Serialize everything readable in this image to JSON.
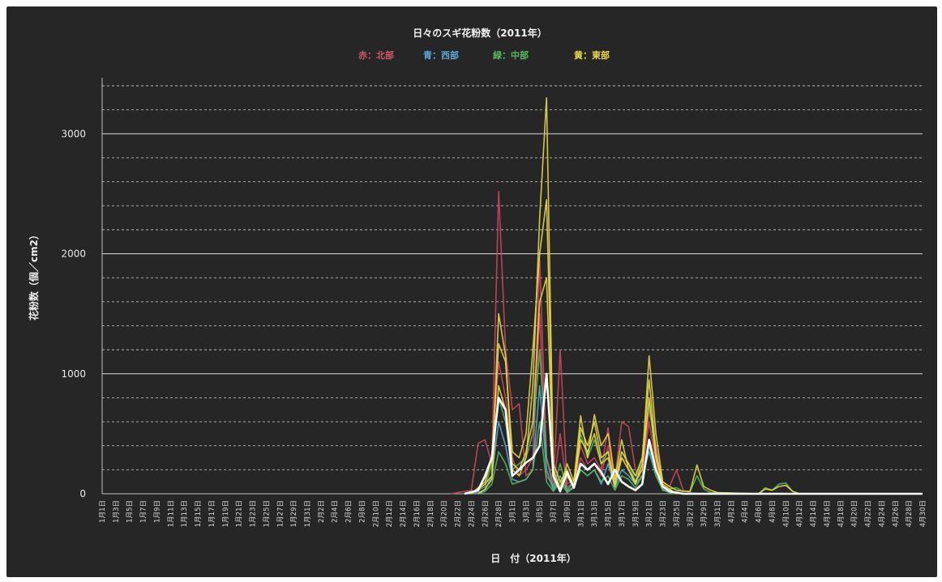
{
  "chart_data": {
    "type": "line",
    "title": "日々のスギ花粉数（2011年）",
    "legend": [
      {
        "label": "赤：北部",
        "color": "#d0576a"
      },
      {
        "label": "青：西部",
        "color": "#5aa7d8"
      },
      {
        "label": "緑：中部",
        "color": "#58b85a"
      },
      {
        "label": "黄：東部",
        "color": "#e8d84a"
      }
    ],
    "legend_placement": "top-center",
    "xlabel": "日　付（2011年）",
    "ylabel": "花粉数（個／cm2）",
    "ylim": [
      0,
      3400
    ],
    "y_ticks": [
      0,
      1000,
      2000,
      3000
    ],
    "grid": true,
    "x_tick_labels": [
      "1月1日",
      "1月3日",
      "1月5日",
      "1月7日",
      "1月9日",
      "1月11日",
      "1月13日",
      "1月15日",
      "1月17日",
      "1月19日",
      "1月21日",
      "1月23日",
      "1月25日",
      "1月27日",
      "1月29日",
      "1月31日",
      "2月2日",
      "2月4日",
      "2月6日",
      "2月8日",
      "2月10日",
      "2月12日",
      "2月14日",
      "2月16日",
      "2月18日",
      "2月20日",
      "2月22日",
      "2月24日",
      "2月26日",
      "2月28日",
      "3月1日",
      "3月3日",
      "3月5日",
      "3月7日",
      "3月9日",
      "3月11日",
      "3月13日",
      "3月15日",
      "3月17日",
      "3月19日",
      "3月21日",
      "3月23日",
      "3月25日",
      "3月27日",
      "3月29日",
      "3月31日",
      "4月2日",
      "4月4日",
      "4月6日",
      "4月8日",
      "4月10日",
      "4月12日",
      "4月14日",
      "4月16日",
      "4月18日",
      "4月20日",
      "4月22日",
      "4月24日",
      "4月26日",
      "4月28日",
      "4月30日"
    ],
    "series": [
      {
        "color": "#c9485e",
        "points": [
          [
            51,
            0
          ],
          [
            54,
            30
          ],
          [
            55,
            420
          ],
          [
            56,
            450
          ],
          [
            57,
            250
          ],
          [
            58,
            2520
          ],
          [
            59,
            1200
          ],
          [
            60,
            700
          ],
          [
            61,
            750
          ],
          [
            62,
            150
          ],
          [
            63,
            200
          ],
          [
            64,
            1950
          ],
          [
            65,
            300
          ],
          [
            66,
            100
          ],
          [
            67,
            1200
          ],
          [
            68,
            80
          ],
          [
            69,
            120
          ],
          [
            70,
            400
          ],
          [
            71,
            250
          ],
          [
            72,
            300
          ],
          [
            73,
            200
          ],
          [
            74,
            550
          ],
          [
            75,
            120
          ],
          [
            76,
            600
          ],
          [
            77,
            560
          ],
          [
            78,
            200
          ],
          [
            79,
            120
          ],
          [
            80,
            700
          ],
          [
            81,
            400
          ],
          [
            82,
            100
          ],
          [
            83,
            60
          ],
          [
            84,
            200
          ],
          [
            85,
            30
          ],
          [
            86,
            10
          ],
          [
            87,
            0
          ]
        ]
      },
      {
        "color": "#c9485e",
        "points": [
          [
            54,
            0
          ],
          [
            56,
            100
          ],
          [
            57,
            300
          ],
          [
            58,
            1100
          ],
          [
            59,
            800
          ],
          [
            60,
            300
          ],
          [
            61,
            150
          ],
          [
            62,
            200
          ],
          [
            63,
            300
          ],
          [
            64,
            1500
          ],
          [
            65,
            150
          ],
          [
            66,
            60
          ],
          [
            67,
            500
          ],
          [
            68,
            50
          ],
          [
            69,
            100
          ],
          [
            70,
            300
          ],
          [
            71,
            200
          ],
          [
            72,
            250
          ],
          [
            73,
            150
          ],
          [
            74,
            400
          ],
          [
            75,
            80
          ],
          [
            76,
            300
          ],
          [
            77,
            250
          ],
          [
            78,
            150
          ],
          [
            79,
            200
          ],
          [
            80,
            600
          ],
          [
            81,
            250
          ],
          [
            82,
            60
          ],
          [
            83,
            20
          ],
          [
            84,
            0
          ]
        ]
      },
      {
        "color": "#5aa7d8",
        "points": [
          [
            54,
            0
          ],
          [
            56,
            30
          ],
          [
            57,
            150
          ],
          [
            58,
            600
          ],
          [
            59,
            400
          ],
          [
            60,
            120
          ],
          [
            61,
            100
          ],
          [
            62,
            120
          ],
          [
            63,
            200
          ],
          [
            64,
            900
          ],
          [
            65,
            200
          ],
          [
            66,
            30
          ],
          [
            67,
            150
          ],
          [
            68,
            20
          ],
          [
            69,
            60
          ],
          [
            70,
            200
          ],
          [
            71,
            150
          ],
          [
            72,
            200
          ],
          [
            73,
            80
          ],
          [
            74,
            250
          ],
          [
            75,
            50
          ],
          [
            76,
            200
          ],
          [
            77,
            150
          ],
          [
            78,
            80
          ],
          [
            79,
            150
          ],
          [
            80,
            350
          ],
          [
            81,
            150
          ],
          [
            82,
            40
          ],
          [
            83,
            10
          ],
          [
            84,
            0
          ]
        ]
      },
      {
        "color": "#58b85a",
        "points": [
          [
            54,
            0
          ],
          [
            56,
            60
          ],
          [
            57,
            250
          ],
          [
            58,
            800
          ],
          [
            59,
            600
          ],
          [
            60,
            200
          ],
          [
            61,
            250
          ],
          [
            62,
            300
          ],
          [
            63,
            500
          ],
          [
            64,
            1200
          ],
          [
            65,
            300
          ],
          [
            66,
            50
          ],
          [
            67,
            250
          ],
          [
            68,
            30
          ],
          [
            69,
            100
          ],
          [
            70,
            500
          ],
          [
            71,
            300
          ],
          [
            72,
            450
          ],
          [
            73,
            250
          ],
          [
            74,
            350
          ],
          [
            75,
            80
          ],
          [
            76,
            350
          ],
          [
            77,
            250
          ],
          [
            78,
            100
          ],
          [
            79,
            300
          ],
          [
            80,
            750
          ],
          [
            81,
            300
          ],
          [
            82,
            60
          ],
          [
            83,
            40
          ],
          [
            84,
            50
          ],
          [
            85,
            20
          ],
          [
            86,
            20
          ],
          [
            87,
            150
          ],
          [
            88,
            40
          ],
          [
            89,
            10
          ],
          [
            96,
            0
          ],
          [
            97,
            50
          ],
          [
            98,
            30
          ],
          [
            99,
            80
          ],
          [
            100,
            90
          ],
          [
            101,
            20
          ],
          [
            102,
            0
          ]
        ]
      },
      {
        "color": "#58b85a",
        "points": [
          [
            55,
            0
          ],
          [
            56,
            20
          ],
          [
            57,
            80
          ],
          [
            58,
            350
          ],
          [
            59,
            250
          ],
          [
            60,
            80
          ],
          [
            61,
            100
          ],
          [
            62,
            120
          ],
          [
            63,
            200
          ],
          [
            64,
            600
          ],
          [
            65,
            100
          ],
          [
            66,
            20
          ],
          [
            67,
            100
          ],
          [
            68,
            10
          ],
          [
            69,
            50
          ],
          [
            70,
            200
          ],
          [
            71,
            150
          ],
          [
            72,
            200
          ],
          [
            73,
            100
          ],
          [
            74,
            150
          ],
          [
            75,
            30
          ],
          [
            76,
            150
          ],
          [
            77,
            120
          ],
          [
            78,
            50
          ],
          [
            79,
            150
          ],
          [
            80,
            400
          ],
          [
            81,
            150
          ],
          [
            82,
            30
          ],
          [
            83,
            10
          ],
          [
            84,
            0
          ]
        ]
      },
      {
        "color": "#e8d84a",
        "points": [
          [
            54,
            0
          ],
          [
            56,
            80
          ],
          [
            57,
            150
          ],
          [
            58,
            1500
          ],
          [
            59,
            1150
          ],
          [
            60,
            200
          ],
          [
            61,
            150
          ],
          [
            62,
            300
          ],
          [
            63,
            900
          ],
          [
            64,
            2300
          ],
          [
            65,
            3300
          ],
          [
            66,
            200
          ],
          [
            67,
            50
          ],
          [
            68,
            250
          ],
          [
            69,
            100
          ],
          [
            70,
            650
          ],
          [
            71,
            300
          ],
          [
            72,
            660
          ],
          [
            73,
            400
          ],
          [
            74,
            500
          ],
          [
            75,
            120
          ],
          [
            76,
            450
          ],
          [
            77,
            200
          ],
          [
            78,
            80
          ],
          [
            79,
            250
          ],
          [
            80,
            1150
          ],
          [
            81,
            500
          ],
          [
            82,
            100
          ],
          [
            83,
            60
          ],
          [
            84,
            30
          ],
          [
            85,
            20
          ],
          [
            86,
            20
          ],
          [
            87,
            240
          ],
          [
            88,
            60
          ],
          [
            89,
            30
          ],
          [
            90,
            10
          ],
          [
            96,
            0
          ],
          [
            97,
            40
          ],
          [
            98,
            30
          ],
          [
            99,
            60
          ],
          [
            100,
            70
          ],
          [
            101,
            20
          ],
          [
            102,
            0
          ]
        ]
      },
      {
        "color": "#e8d84a",
        "points": [
          [
            54,
            0
          ],
          [
            56,
            100
          ],
          [
            57,
            300
          ],
          [
            58,
            1250
          ],
          [
            59,
            1100
          ],
          [
            60,
            350
          ],
          [
            61,
            300
          ],
          [
            62,
            500
          ],
          [
            63,
            1200
          ],
          [
            64,
            2000
          ],
          [
            65,
            2450
          ],
          [
            66,
            250
          ],
          [
            67,
            100
          ],
          [
            68,
            200
          ],
          [
            69,
            60
          ],
          [
            70,
            550
          ],
          [
            71,
            400
          ],
          [
            72,
            600
          ],
          [
            73,
            300
          ],
          [
            74,
            350
          ],
          [
            75,
            80
          ],
          [
            76,
            350
          ],
          [
            77,
            250
          ],
          [
            78,
            150
          ],
          [
            79,
            300
          ],
          [
            80,
            950
          ],
          [
            81,
            350
          ],
          [
            82,
            80
          ],
          [
            83,
            40
          ],
          [
            84,
            0
          ]
        ]
      },
      {
        "color": "#e8d84a",
        "points": [
          [
            55,
            0
          ],
          [
            56,
            40
          ],
          [
            57,
            120
          ],
          [
            58,
            900
          ],
          [
            59,
            700
          ],
          [
            60,
            250
          ],
          [
            61,
            200
          ],
          [
            62,
            350
          ],
          [
            63,
            600
          ],
          [
            64,
            1600
          ],
          [
            65,
            1800
          ],
          [
            66,
            150
          ],
          [
            67,
            40
          ],
          [
            68,
            150
          ],
          [
            69,
            50
          ],
          [
            70,
            450
          ],
          [
            71,
            350
          ],
          [
            72,
            500
          ],
          [
            73,
            250
          ],
          [
            74,
            300
          ],
          [
            75,
            60
          ],
          [
            76,
            300
          ],
          [
            77,
            200
          ],
          [
            78,
            100
          ],
          [
            79,
            200
          ],
          [
            80,
            800
          ],
          [
            81,
            300
          ],
          [
            82,
            60
          ],
          [
            83,
            30
          ],
          [
            84,
            0
          ]
        ]
      },
      {
        "color": "#ffffff",
        "points": [
          [
            53,
            0
          ],
          [
            55,
            30
          ],
          [
            56,
            150
          ],
          [
            57,
            300
          ],
          [
            58,
            800
          ],
          [
            59,
            700
          ],
          [
            60,
            150
          ],
          [
            61,
            200
          ],
          [
            62,
            260
          ],
          [
            63,
            300
          ],
          [
            64,
            400
          ],
          [
            65,
            1000
          ],
          [
            66,
            150
          ],
          [
            67,
            20
          ],
          [
            68,
            180
          ],
          [
            69,
            50
          ],
          [
            70,
            250
          ],
          [
            71,
            200
          ],
          [
            72,
            250
          ],
          [
            73,
            180
          ],
          [
            74,
            80
          ],
          [
            75,
            200
          ],
          [
            76,
            100
          ],
          [
            77,
            60
          ],
          [
            78,
            30
          ],
          [
            79,
            80
          ],
          [
            80,
            450
          ],
          [
            81,
            200
          ],
          [
            82,
            60
          ],
          [
            83,
            20
          ],
          [
            85,
            0
          ],
          [
            120,
            0
          ]
        ]
      }
    ]
  }
}
